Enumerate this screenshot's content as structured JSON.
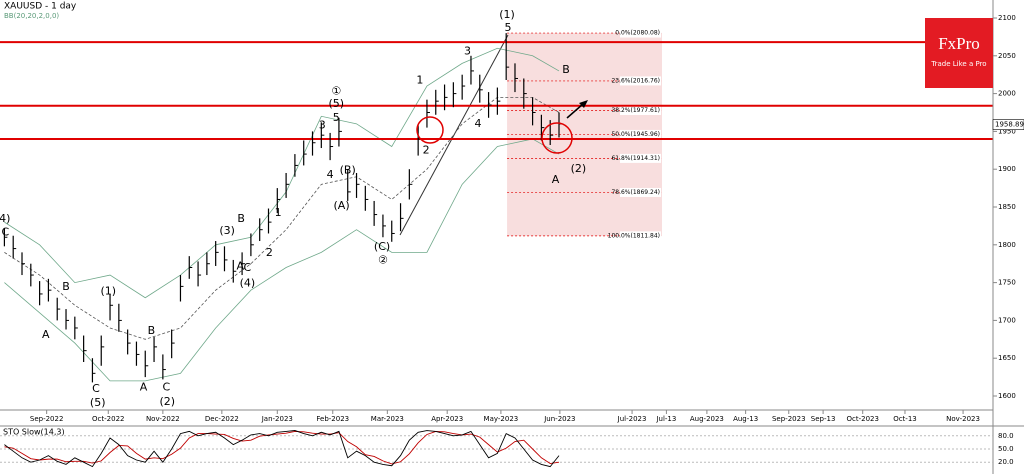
{
  "chart_data": {
    "type": "hlc",
    "title": "XAUUSD - 1 day",
    "indicator_label": "BB(20,20,2,0,0)",
    "indicator_color": "#5a9a78",
    "bar_color": "#000000",
    "xlim": [
      -0.5,
      112.3
    ],
    "ylim": [
      1581.5,
      2123.8
    ],
    "yticks": [
      1600,
      1650,
      1700,
      1750,
      1800,
      1850,
      1900,
      1950,
      2000,
      2050,
      2100
    ],
    "xticks": [
      {
        "value": 4.8,
        "label": "Sep-2022"
      },
      {
        "value": 11.8,
        "label": "Oct-2022"
      },
      {
        "value": 18.0,
        "label": "Nov-2022"
      },
      {
        "value": 24.7,
        "label": "Dec-2022"
      },
      {
        "value": 31.0,
        "label": "Jan-2023"
      },
      {
        "value": 37.3,
        "label": "Feb-2023"
      },
      {
        "value": 43.5,
        "label": "Mar-2023"
      },
      {
        "value": 50.3,
        "label": "Apr-2023"
      },
      {
        "value": 56.4,
        "label": "May-2023"
      },
      {
        "value": 63.1,
        "label": "Jun-2023"
      },
      {
        "value": 71.3,
        "label": "Jul-2023"
      },
      {
        "value": 75.2,
        "label": "Jul-13"
      },
      {
        "value": 79.8,
        "label": "Aug-2023"
      },
      {
        "value": 84.2,
        "label": "Aug-13"
      },
      {
        "value": 89.1,
        "label": "Sep-2023"
      },
      {
        "value": 93.0,
        "label": "Sep-13"
      },
      {
        "value": 97.5,
        "label": "Oct-2023"
      },
      {
        "value": 102.3,
        "label": "Oct-13"
      },
      {
        "value": 108.9,
        "label": "Nov-2023"
      }
    ],
    "close": [
      1810,
      1795,
      1775,
      1760,
      1735,
      1740,
      1715,
      1700,
      1690,
      1660,
      1630,
      1665,
      1720,
      1700,
      1670,
      1655,
      1640,
      1665,
      1635,
      1670,
      1745,
      1770,
      1760,
      1775,
      1790,
      1780,
      1765,
      1775,
      1800,
      1820,
      1830,
      1860,
      1880,
      1905,
      1920,
      1935,
      1945,
      1930,
      1950,
      1870,
      1880,
      1860,
      1840,
      1825,
      1815,
      1835,
      1880,
      1940,
      1975,
      1990,
      1995,
      2000,
      2010,
      2030,
      2005,
      1985,
      1990,
      2035,
      2020,
      2000,
      1975,
      1955,
      1945,
      1960
    ],
    "high": [
      1822,
      1812,
      1790,
      1775,
      1752,
      1755,
      1730,
      1715,
      1705,
      1680,
      1650,
      1680,
      1735,
      1722,
      1688,
      1672,
      1660,
      1678,
      1655,
      1688,
      1760,
      1785,
      1778,
      1790,
      1805,
      1798,
      1780,
      1790,
      1815,
      1835,
      1848,
      1875,
      1895,
      1920,
      1938,
      1950,
      1962,
      1948,
      1968,
      1900,
      1895,
      1878,
      1858,
      1840,
      1832,
      1855,
      1900,
      1958,
      1992,
      2005,
      2012,
      2015,
      2025,
      2050,
      2025,
      2002,
      2008,
      2080,
      2040,
      2020,
      1995,
      1972,
      1965,
      1975
    ],
    "low": [
      1798,
      1782,
      1760,
      1745,
      1720,
      1725,
      1700,
      1688,
      1675,
      1645,
      1618,
      1640,
      1700,
      1685,
      1655,
      1640,
      1625,
      1645,
      1622,
      1650,
      1725,
      1755,
      1745,
      1760,
      1772,
      1765,
      1750,
      1760,
      1785,
      1805,
      1815,
      1842,
      1862,
      1890,
      1905,
      1918,
      1928,
      1912,
      1930,
      1858,
      1862,
      1845,
      1825,
      1810,
      1804,
      1818,
      1860,
      1918,
      1955,
      1972,
      1978,
      1982,
      1992,
      2012,
      1988,
      1968,
      1972,
      2018,
      2002,
      1980,
      1958,
      1938,
      1932,
      1942
    ],
    "last_price": 1958.89,
    "bands": {
      "color": "#6fa88a",
      "x": [
        0,
        4,
        8,
        12,
        16,
        20,
        24,
        28,
        32,
        36,
        40,
        44,
        48,
        52,
        56,
        60,
        63
      ],
      "upper": [
        1830,
        1800,
        1750,
        1760,
        1730,
        1760,
        1800,
        1810,
        1870,
        1970,
        1960,
        1930,
        2010,
        2040,
        2060,
        2050,
        2030
      ],
      "middle": [
        1790,
        1760,
        1720,
        1690,
        1675,
        1690,
        1740,
        1775,
        1820,
        1880,
        1890,
        1860,
        1900,
        1960,
        1995,
        1995,
        1975
      ],
      "lower": [
        1750,
        1710,
        1670,
        1620,
        1620,
        1630,
        1690,
        1740,
        1770,
        1790,
        1820,
        1790,
        1790,
        1880,
        1930,
        1940,
        1920
      ]
    },
    "levels": [
      2068,
      1984,
      1940
    ],
    "level_color": "#e00000",
    "fib": {
      "start_x": 57.1,
      "end_x": 74.7,
      "fill": "#f6d6d6",
      "levels": [
        {
          "value": 2080.08,
          "label": "0.0%(2080.08)"
        },
        {
          "value": 2016.76,
          "label": "23.6%(2016.76)"
        },
        {
          "value": 1977.61,
          "label": "38.2%(1977.61)"
        },
        {
          "value": 1945.96,
          "label": "50.0%(1945.96)"
        },
        {
          "value": 1914.31,
          "label": "61.8%(1914.31)"
        },
        {
          "value": 1869.24,
          "label": "78.6%(1869.24)"
        },
        {
          "value": 1811.84,
          "label": "100.0%(1811.84)"
        }
      ]
    },
    "annotations": [
      {
        "text": "(4)",
        "x": -0.2,
        "y": 1834
      },
      {
        "text": "C",
        "x": 0.1,
        "y": 1816
      },
      {
        "text": "B",
        "x": 7.0,
        "y": 1744
      },
      {
        "text": "A",
        "x": 4.7,
        "y": 1681
      },
      {
        "text": "C",
        "x": 10.4,
        "y": 1609
      },
      {
        "text": "(5)",
        "x": 10.6,
        "y": 1591
      },
      {
        "text": "(1)",
        "x": 11.8,
        "y": 1738
      },
      {
        "text": "B",
        "x": 16.7,
        "y": 1686
      },
      {
        "text": "A",
        "x": 15.8,
        "y": 1611
      },
      {
        "text": "C",
        "x": 18.4,
        "y": 1611
      },
      {
        "text": "(2)",
        "x": 18.5,
        "y": 1592
      },
      {
        "text": "B",
        "x": 26.9,
        "y": 1834
      },
      {
        "text": "(3)",
        "x": 25.3,
        "y": 1818
      },
      {
        "text": "A",
        "x": 26.8,
        "y": 1771
      },
      {
        "text": "C",
        "x": 27.6,
        "y": 1769
      },
      {
        "text": "(4)",
        "x": 27.6,
        "y": 1749
      },
      {
        "text": "2",
        "x": 30.1,
        "y": 1789
      },
      {
        "text": "1",
        "x": 31.1,
        "y": 1842
      },
      {
        "text": "3",
        "x": 36.1,
        "y": 1958
      },
      {
        "text": "5",
        "x": 37.7,
        "y": 1968
      },
      {
        "text": "(5)",
        "x": 37.7,
        "y": 1986
      },
      {
        "text": "①",
        "x": 37.7,
        "y": 2003
      },
      {
        "text": "4",
        "x": 37.0,
        "y": 1892
      },
      {
        "text": "(B)",
        "x": 39.0,
        "y": 1898
      },
      {
        "text": "(A)",
        "x": 38.3,
        "y": 1851
      },
      {
        "text": "(C)",
        "x": 42.9,
        "y": 1797
      },
      {
        "text": "②",
        "x": 43.0,
        "y": 1779
      },
      {
        "text": "1",
        "x": 47.2,
        "y": 2017
      },
      {
        "text": "2",
        "x": 47.9,
        "y": 1925
      },
      {
        "text": "3",
        "x": 52.6,
        "y": 2056
      },
      {
        "text": "4",
        "x": 53.8,
        "y": 1960
      },
      {
        "text": "5",
        "x": 57.2,
        "y": 2087
      },
      {
        "text": "(1)",
        "x": 57.1,
        "y": 2104
      },
      {
        "text": "B",
        "x": 63.8,
        "y": 2031
      },
      {
        "text": "A",
        "x": 62.6,
        "y": 1886
      },
      {
        "text": "(2)",
        "x": 65.2,
        "y": 1900
      }
    ],
    "oscillator": {
      "title": "STO Slow(14,3)",
      "ylim": [
        0,
        100
      ],
      "yticks": [
        {
          "value": 80,
          "label": "80.0"
        },
        {
          "value": 50,
          "label": "50.0"
        },
        {
          "value": 20,
          "label": "20.0"
        }
      ],
      "k_color": "#000000",
      "d_color": "#c00000",
      "k": [
        60,
        45,
        30,
        20,
        25,
        35,
        22,
        15,
        30,
        20,
        10,
        40,
        75,
        60,
        35,
        25,
        20,
        45,
        20,
        50,
        85,
        90,
        80,
        85,
        88,
        75,
        60,
        70,
        82,
        85,
        80,
        88,
        90,
        92,
        85,
        80,
        88,
        82,
        90,
        30,
        45,
        35,
        20,
        15,
        12,
        35,
        70,
        88,
        92,
        90,
        85,
        80,
        82,
        90,
        60,
        30,
        40,
        85,
        75,
        50,
        25,
        15,
        10,
        35
      ],
      "d": [
        55,
        52,
        40,
        28,
        25,
        27,
        27,
        21,
        22,
        22,
        18,
        23,
        42,
        58,
        57,
        40,
        27,
        30,
        28,
        38,
        52,
        75,
        85,
        85,
        84,
        83,
        74,
        68,
        70,
        79,
        82,
        84,
        86,
        90,
        89,
        86,
        84,
        84,
        87,
        67,
        55,
        37,
        33,
        23,
        16,
        21,
        39,
        64,
        83,
        90,
        89,
        85,
        82,
        84,
        77,
        60,
        43,
        52,
        67,
        70,
        50,
        30,
        17,
        20
      ]
    },
    "logo": {
      "name": "FxPro",
      "tagline": "Trade Like a Pro",
      "color": "#e31b23"
    }
  }
}
